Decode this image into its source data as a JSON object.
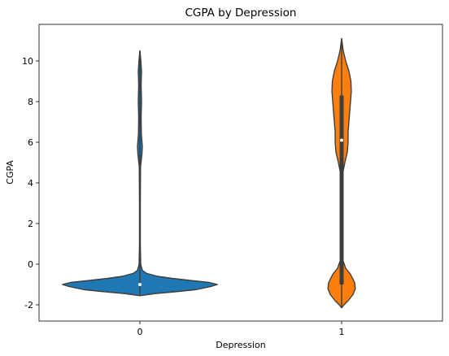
{
  "chart_data": {
    "type": "violin",
    "title": "CGPA by Depression",
    "xlabel": "Depression",
    "ylabel": "CGPA",
    "categories": [
      "0",
      "1"
    ],
    "ylim": [
      -2.8,
      11.8
    ],
    "yticks": [
      -2,
      0,
      2,
      4,
      6,
      8,
      10
    ],
    "grid": false,
    "colors": {
      "0": "#1f77b4",
      "1": "#ff7f0e"
    },
    "violins": [
      {
        "category": "0",
        "color": "#1f77b4",
        "median": -1.0,
        "q1": -1.0,
        "q3": -1.0,
        "min": -1.5,
        "max": 10.5,
        "density_profile": [
          [
            -1.55,
            0.0
          ],
          [
            -1.45,
            0.18
          ],
          [
            -1.35,
            0.46
          ],
          [
            -1.25,
            0.7
          ],
          [
            -1.1,
            0.88
          ],
          [
            -1.0,
            0.96
          ],
          [
            -0.9,
            0.86
          ],
          [
            -0.8,
            0.62
          ],
          [
            -0.7,
            0.4
          ],
          [
            -0.6,
            0.22
          ],
          [
            -0.45,
            0.08
          ],
          [
            -0.3,
            0.03
          ],
          [
            0.0,
            0.01
          ],
          [
            1.0,
            0.005
          ],
          [
            3.0,
            0.005
          ],
          [
            4.8,
            0.008
          ],
          [
            5.4,
            0.025
          ],
          [
            5.8,
            0.03
          ],
          [
            6.4,
            0.018
          ],
          [
            7.2,
            0.015
          ],
          [
            8.0,
            0.02
          ],
          [
            8.8,
            0.015
          ],
          [
            9.5,
            0.02
          ],
          [
            10.0,
            0.012
          ],
          [
            10.5,
            0.0
          ]
        ]
      },
      {
        "category": "1",
        "color": "#ff7f0e",
        "median": 6.1,
        "q1": -1.0,
        "q3": 8.3,
        "min": -2.15,
        "max": 11.1,
        "density_profile": [
          [
            -2.15,
            0.0
          ],
          [
            -2.0,
            0.03
          ],
          [
            -1.8,
            0.08
          ],
          [
            -1.5,
            0.14
          ],
          [
            -1.2,
            0.17
          ],
          [
            -0.9,
            0.16
          ],
          [
            -0.5,
            0.11
          ],
          [
            -0.2,
            0.05
          ],
          [
            0.2,
            0.015
          ],
          [
            1.0,
            0.006
          ],
          [
            3.0,
            0.006
          ],
          [
            4.5,
            0.015
          ],
          [
            5.0,
            0.04
          ],
          [
            5.5,
            0.07
          ],
          [
            6.0,
            0.08
          ],
          [
            6.5,
            0.08
          ],
          [
            7.0,
            0.09
          ],
          [
            7.5,
            0.1
          ],
          [
            8.0,
            0.11
          ],
          [
            8.5,
            0.12
          ],
          [
            9.0,
            0.115
          ],
          [
            9.5,
            0.09
          ],
          [
            10.0,
            0.05
          ],
          [
            10.5,
            0.02
          ],
          [
            10.8,
            0.01
          ],
          [
            11.1,
            0.0
          ]
        ]
      }
    ]
  }
}
